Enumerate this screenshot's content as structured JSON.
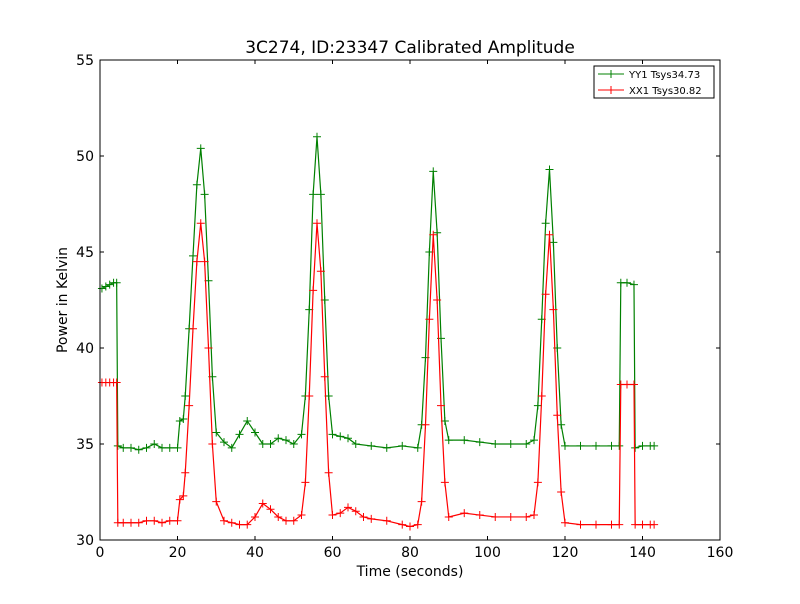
{
  "chart_data": {
    "type": "line",
    "title": "3C274, ID:23347 Calibrated Amplitude",
    "xlabel": "Time (seconds)",
    "ylabel": "Power in Kelvin",
    "xlim": [
      0,
      160
    ],
    "ylim": [
      30,
      55
    ],
    "xticks": [
      0,
      20,
      40,
      60,
      80,
      100,
      120,
      140,
      160
    ],
    "yticks": [
      30,
      35,
      40,
      45,
      50,
      55
    ],
    "xtick_labels": [
      "0",
      "20",
      "40",
      "60",
      "80",
      "100",
      "120",
      "140",
      "160"
    ],
    "ytick_labels": [
      "30",
      "35",
      "40",
      "45",
      "50",
      "55"
    ],
    "grid": false,
    "legend_position": "top-right",
    "marker": "plus",
    "series": [
      {
        "name": "YY1 Tsys34.73",
        "color": "#008000",
        "points": [
          [
            0.5,
            43.1
          ],
          [
            1.5,
            43.2
          ],
          [
            2.5,
            43.3
          ],
          [
            3.5,
            43.4
          ],
          [
            4.3,
            43.4
          ],
          [
            4.6,
            34.9
          ],
          [
            6,
            34.8
          ],
          [
            8,
            34.8
          ],
          [
            10,
            34.7
          ],
          [
            12,
            34.8
          ],
          [
            14,
            35.0
          ],
          [
            16,
            34.8
          ],
          [
            18,
            34.8
          ],
          [
            20,
            34.8
          ],
          [
            20.6,
            36.2
          ],
          [
            21.5,
            36.3
          ],
          [
            22,
            37.5
          ],
          [
            23,
            41.0
          ],
          [
            24,
            44.8
          ],
          [
            25,
            48.5
          ],
          [
            26,
            50.4
          ],
          [
            27,
            48.0
          ],
          [
            28,
            43.5
          ],
          [
            29,
            38.5
          ],
          [
            30,
            35.6
          ],
          [
            32,
            35.1
          ],
          [
            34,
            34.8
          ],
          [
            36,
            35.5
          ],
          [
            38,
            36.2
          ],
          [
            40,
            35.6
          ],
          [
            42,
            35.0
          ],
          [
            44,
            35.0
          ],
          [
            46,
            35.3
          ],
          [
            48,
            35.2
          ],
          [
            50,
            35.0
          ],
          [
            52,
            35.5
          ],
          [
            53,
            37.5
          ],
          [
            54,
            42.0
          ],
          [
            55,
            48.0
          ],
          [
            56,
            51.0
          ],
          [
            57,
            48.0
          ],
          [
            58,
            42.5
          ],
          [
            59,
            37.5
          ],
          [
            60,
            35.5
          ],
          [
            62,
            35.4
          ],
          [
            64,
            35.3
          ],
          [
            66,
            35.0
          ],
          [
            70,
            34.9
          ],
          [
            74,
            34.8
          ],
          [
            78,
            34.9
          ],
          [
            82,
            34.8
          ],
          [
            83,
            36.0
          ],
          [
            84,
            39.5
          ],
          [
            85,
            45.0
          ],
          [
            86,
            49.2
          ],
          [
            87,
            46.0
          ],
          [
            88,
            40.5
          ],
          [
            89,
            36.2
          ],
          [
            90,
            35.2
          ],
          [
            94,
            35.2
          ],
          [
            98,
            35.1
          ],
          [
            102,
            35.0
          ],
          [
            106,
            35.0
          ],
          [
            110,
            35.0
          ],
          [
            112,
            35.2
          ],
          [
            113,
            37.0
          ],
          [
            114,
            41.5
          ],
          [
            115,
            46.5
          ],
          [
            116,
            49.3
          ],
          [
            117,
            45.5
          ],
          [
            118,
            40.0
          ],
          [
            119,
            36.0
          ],
          [
            120,
            34.9
          ],
          [
            124,
            34.9
          ],
          [
            128,
            34.9
          ],
          [
            132,
            34.9
          ],
          [
            134,
            34.9
          ],
          [
            134.4,
            43.4
          ],
          [
            136,
            43.4
          ],
          [
            137.8,
            43.3
          ],
          [
            138.1,
            34.8
          ],
          [
            140,
            34.9
          ],
          [
            142,
            34.9
          ],
          [
            143,
            34.9
          ]
        ]
      },
      {
        "name": "XX1 Tsys30.82",
        "color": "#ff0000",
        "points": [
          [
            0.5,
            38.2
          ],
          [
            1.5,
            38.2
          ],
          [
            2.5,
            38.2
          ],
          [
            3.5,
            38.2
          ],
          [
            4.3,
            38.2
          ],
          [
            4.6,
            30.9
          ],
          [
            6,
            30.9
          ],
          [
            8,
            30.9
          ],
          [
            10,
            30.9
          ],
          [
            12,
            31.0
          ],
          [
            14,
            31.0
          ],
          [
            16,
            30.9
          ],
          [
            18,
            31.0
          ],
          [
            20,
            31.0
          ],
          [
            20.6,
            32.1
          ],
          [
            21.5,
            32.3
          ],
          [
            22,
            33.5
          ],
          [
            23,
            37.0
          ],
          [
            24,
            41.0
          ],
          [
            25,
            44.5
          ],
          [
            26,
            46.5
          ],
          [
            27,
            44.5
          ],
          [
            28,
            40.0
          ],
          [
            29,
            35.0
          ],
          [
            30,
            32.0
          ],
          [
            32,
            31.0
          ],
          [
            34,
            30.9
          ],
          [
            36,
            30.8
          ],
          [
            38,
            30.8
          ],
          [
            40,
            31.2
          ],
          [
            42,
            31.9
          ],
          [
            44,
            31.6
          ],
          [
            46,
            31.2
          ],
          [
            48,
            31.0
          ],
          [
            50,
            31.0
          ],
          [
            52,
            31.3
          ],
          [
            53,
            33.0
          ],
          [
            54,
            37.5
          ],
          [
            55,
            43.0
          ],
          [
            56,
            46.5
          ],
          [
            57,
            44.0
          ],
          [
            58,
            38.5
          ],
          [
            59,
            33.5
          ],
          [
            60,
            31.3
          ],
          [
            62,
            31.4
          ],
          [
            64,
            31.7
          ],
          [
            66,
            31.5
          ],
          [
            68,
            31.2
          ],
          [
            70,
            31.1
          ],
          [
            74,
            31.0
          ],
          [
            78,
            30.8
          ],
          [
            80,
            30.7
          ],
          [
            82,
            30.8
          ],
          [
            83,
            32.0
          ],
          [
            84,
            36.0
          ],
          [
            85,
            41.5
          ],
          [
            86,
            45.9
          ],
          [
            87,
            42.5
          ],
          [
            88,
            37.0
          ],
          [
            89,
            33.0
          ],
          [
            90,
            31.2
          ],
          [
            94,
            31.4
          ],
          [
            98,
            31.3
          ],
          [
            102,
            31.2
          ],
          [
            106,
            31.2
          ],
          [
            110,
            31.2
          ],
          [
            112,
            31.3
          ],
          [
            113,
            33.0
          ],
          [
            114,
            37.5
          ],
          [
            115,
            42.8
          ],
          [
            116,
            45.9
          ],
          [
            117,
            42.0
          ],
          [
            118,
            36.5
          ],
          [
            119,
            32.5
          ],
          [
            120,
            30.9
          ],
          [
            124,
            30.8
          ],
          [
            128,
            30.8
          ],
          [
            132,
            30.8
          ],
          [
            134,
            30.8
          ],
          [
            134.4,
            38.1
          ],
          [
            136,
            38.1
          ],
          [
            137.8,
            38.1
          ],
          [
            138.1,
            30.8
          ],
          [
            140,
            30.8
          ],
          [
            142,
            30.8
          ],
          [
            143,
            30.8
          ]
        ]
      }
    ]
  }
}
